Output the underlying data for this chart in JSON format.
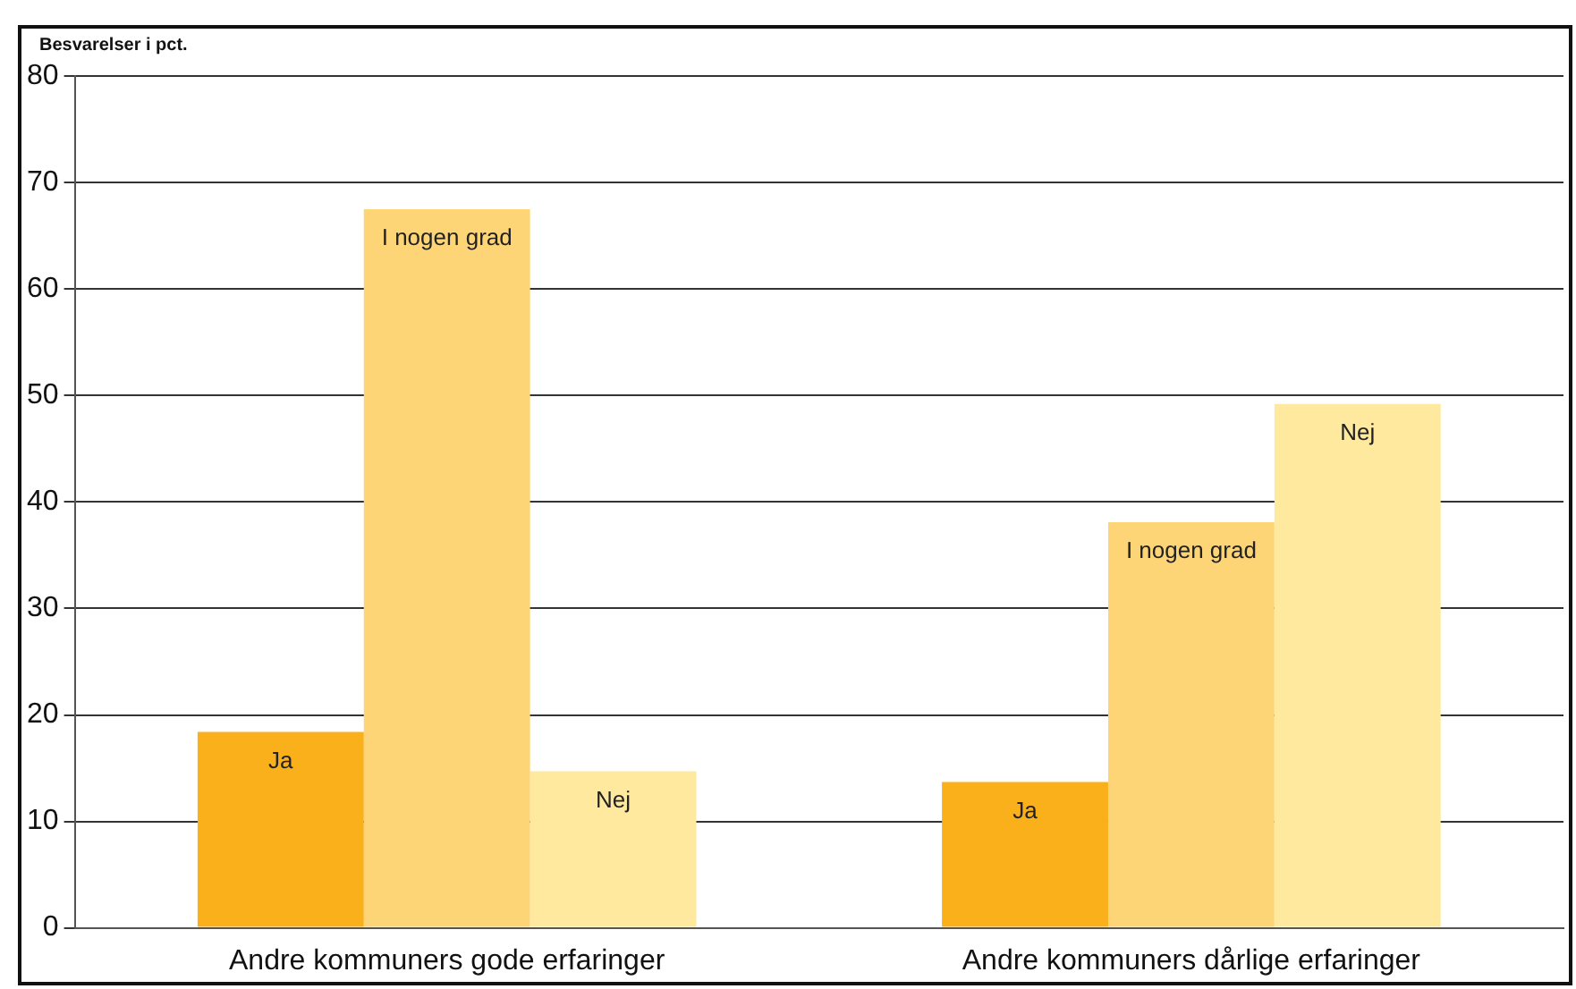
{
  "chart_data": {
    "type": "bar",
    "ylabel": "Besvarelser i pct.",
    "categories": [
      "Andre kommuners gode erfaringer",
      "Andre kommuners dårlige erfaringer"
    ],
    "series": [
      {
        "name": "Ja",
        "color": "#f9b01b",
        "values": [
          18.4,
          13.7
        ]
      },
      {
        "name": "I nogen grad",
        "color": "#fdd577",
        "values": [
          67.5,
          38.1
        ]
      },
      {
        "name": "Nej",
        "color": "#fee99e",
        "values": [
          14.7,
          49.2
        ]
      }
    ],
    "ylim": [
      0,
      80
    ],
    "yticks": [
      0,
      10,
      20,
      30,
      40,
      50,
      60,
      70,
      80
    ],
    "grid": "y",
    "legend": false
  }
}
